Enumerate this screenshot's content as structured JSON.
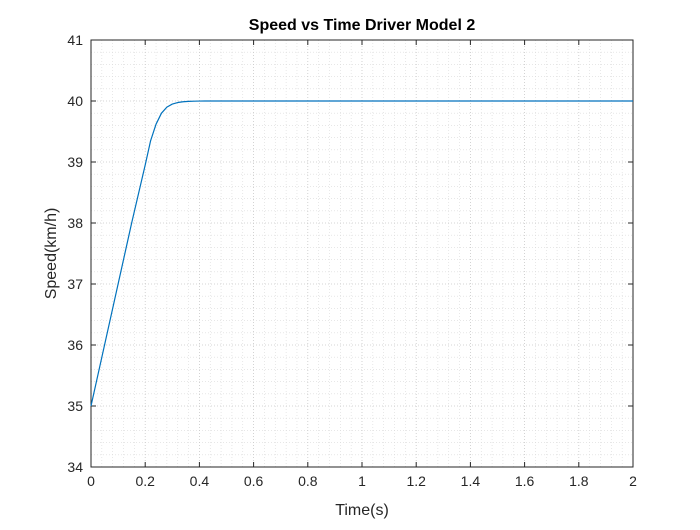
{
  "chart_data": {
    "type": "line",
    "title": "Speed vs Time Driver Model 2",
    "xlabel": "Time(s)",
    "ylabel": "Speed(km/h)",
    "xlim": [
      0,
      2
    ],
    "ylim": [
      34,
      41
    ],
    "xticks": [
      "0",
      "0.2",
      "0.4",
      "0.6",
      "0.8",
      "1",
      "1.2",
      "1.4",
      "1.6",
      "1.8",
      "2"
    ],
    "yticks": [
      "34",
      "35",
      "36",
      "37",
      "38",
      "39",
      "40",
      "41"
    ],
    "grid": "on (major and minor, dotted)",
    "series": [
      {
        "color": "#0072BD",
        "x": [
          0,
          0.05,
          0.1,
          0.15,
          0.2,
          0.22,
          0.24,
          0.26,
          0.28,
          0.3,
          0.32,
          0.34,
          0.36,
          0.38,
          0.4,
          0.42,
          0.44,
          0.5,
          0.6,
          0.8,
          1.0,
          1.2,
          1.4,
          1.6,
          1.8,
          2.0
        ],
        "y": [
          35,
          36.0,
          37.0,
          38.0,
          38.95,
          39.35,
          39.62,
          39.8,
          39.9,
          39.95,
          39.975,
          39.988,
          39.994,
          39.997,
          39.999,
          40.0,
          40.0,
          40.0,
          40.0,
          40.0,
          40.0,
          40.0,
          40.0,
          40.0,
          40.0,
          40.0
        ]
      }
    ]
  }
}
